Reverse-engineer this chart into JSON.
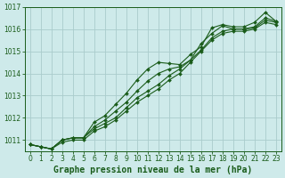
{
  "title": "Graphe pression niveau de la mer (hPa)",
  "background_color": "#ceeaea",
  "grid_color": "#aacccc",
  "line_color": "#1a5c1a",
  "xlim": [
    -0.5,
    23.5
  ],
  "ylim": [
    1010.5,
    1017.0
  ],
  "yticks": [
    1011,
    1012,
    1013,
    1014,
    1015,
    1016,
    1017
  ],
  "xticks": [
    0,
    1,
    2,
    3,
    4,
    5,
    6,
    7,
    8,
    9,
    10,
    11,
    12,
    13,
    14,
    15,
    16,
    17,
    18,
    19,
    20,
    21,
    22,
    23
  ],
  "series": [
    [
      1010.8,
      1010.7,
      1010.6,
      1011.0,
      1011.1,
      1011.1,
      1011.8,
      1012.1,
      1012.6,
      1013.1,
      1013.7,
      1014.2,
      1014.5,
      1014.45,
      1014.4,
      1014.85,
      1015.2,
      1016.05,
      1016.2,
      1016.1,
      1016.1,
      1016.3,
      1016.75,
      1016.35
    ],
    [
      1010.8,
      1010.7,
      1010.6,
      1011.0,
      1011.1,
      1011.1,
      1011.6,
      1011.9,
      1012.3,
      1012.7,
      1013.2,
      1013.65,
      1014.0,
      1014.2,
      1014.3,
      1014.6,
      1015.35,
      1015.8,
      1016.15,
      1016.0,
      1016.0,
      1016.1,
      1016.5,
      1016.35
    ],
    [
      1010.8,
      1010.7,
      1010.6,
      1011.0,
      1011.1,
      1011.1,
      1011.5,
      1011.75,
      1012.0,
      1012.45,
      1012.9,
      1013.2,
      1013.5,
      1013.9,
      1014.2,
      1014.6,
      1015.05,
      1015.6,
      1015.9,
      1016.0,
      1016.0,
      1016.05,
      1016.4,
      1016.3
    ],
    [
      1010.8,
      1010.7,
      1010.6,
      1010.9,
      1011.0,
      1011.0,
      1011.4,
      1011.6,
      1011.9,
      1012.3,
      1012.7,
      1013.0,
      1013.3,
      1013.7,
      1014.0,
      1014.5,
      1015.0,
      1015.5,
      1015.8,
      1015.9,
      1015.9,
      1016.0,
      1016.3,
      1016.2
    ]
  ],
  "marker": "D",
  "markersize": 2.0,
  "linewidth": 0.8,
  "tick_fontsize": 5.5,
  "xlabel_fontsize": 7.0
}
